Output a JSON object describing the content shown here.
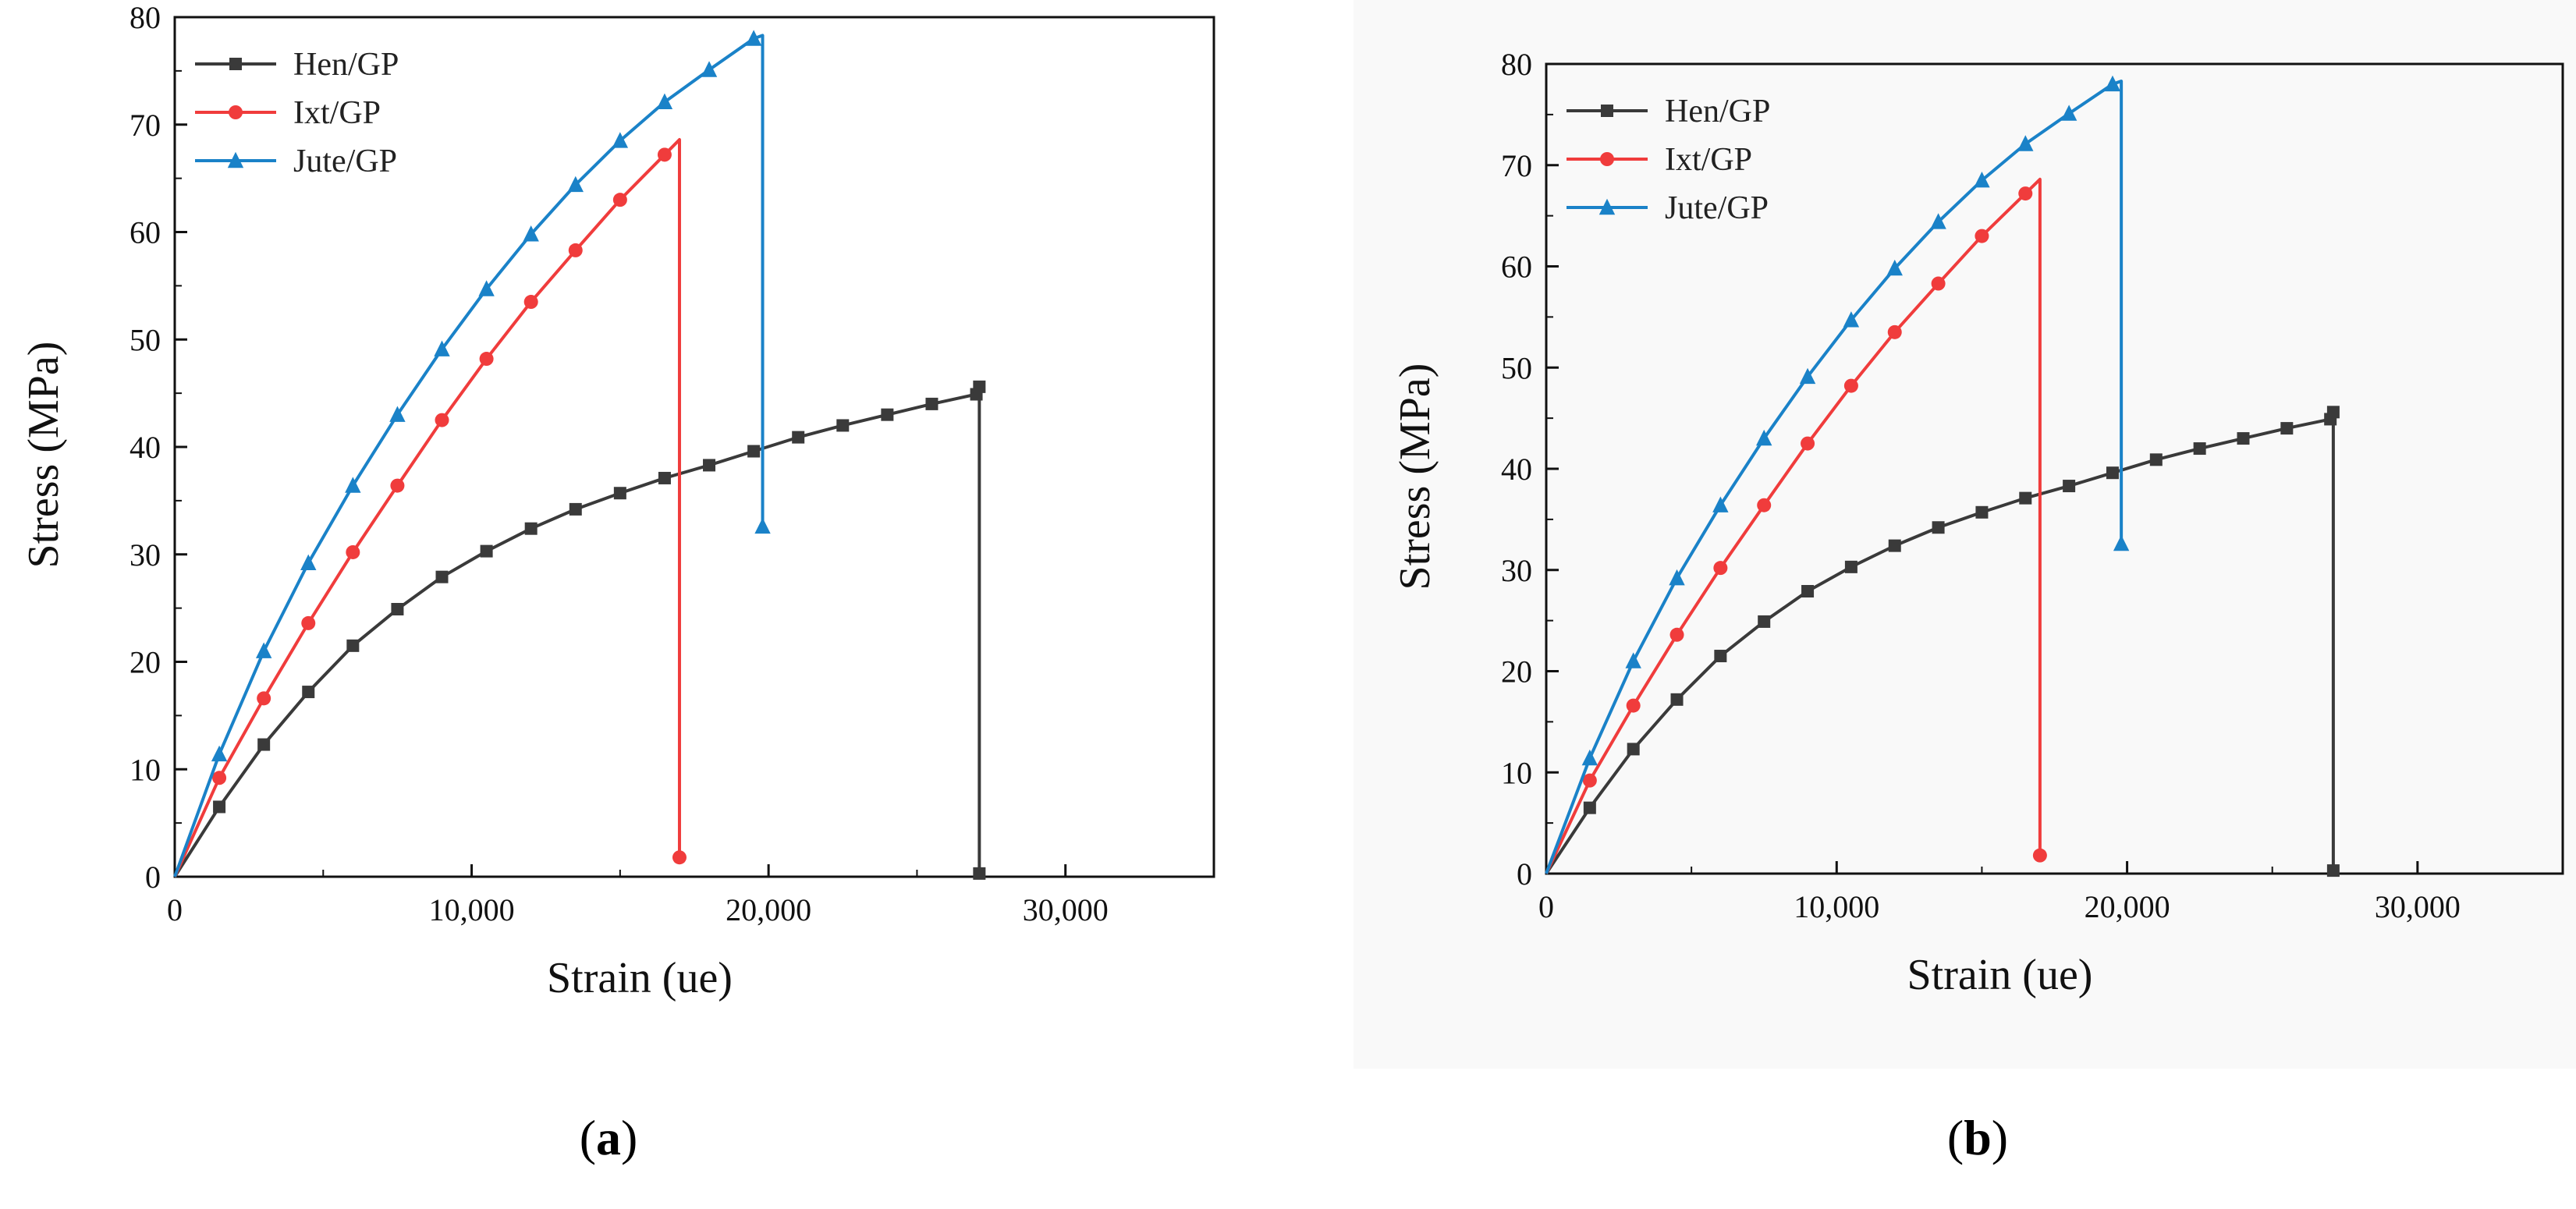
{
  "figure": {
    "panel_labels": [
      {
        "open": "(",
        "letter": "a",
        "close": ")"
      },
      {
        "open": "(",
        "letter": "b",
        "close": ")"
      }
    ]
  },
  "chart_data": [
    {
      "type": "line",
      "panel": "a",
      "xlabel": "Strain (ue)",
      "ylabel": "Stress (MPa)",
      "xlim": [
        0,
        35000
      ],
      "ylim": [
        0,
        80
      ],
      "xticks": [
        0,
        10000,
        20000,
        30000
      ],
      "xtick_labels": [
        "0",
        "10,000",
        "20,000",
        "30,000"
      ],
      "yticks": [
        0,
        10,
        20,
        30,
        40,
        50,
        60,
        70,
        80
      ],
      "ytick_labels": [
        "0",
        "10",
        "20",
        "30",
        "40",
        "50",
        "60",
        "70",
        "80"
      ],
      "legend_position": "top-left",
      "series": [
        {
          "name": "Hen/GP",
          "color": "#3a3a3a",
          "marker": "square",
          "x": [
            0,
            1500,
            3000,
            4500,
            6000,
            7500,
            9000,
            10500,
            12000,
            13500,
            15000,
            16500,
            18000,
            19500,
            21000,
            22500,
            24000,
            25500,
            27000,
            27100,
            27100
          ],
          "y": [
            0,
            6.5,
            12.3,
            17.2,
            21.5,
            24.9,
            27.9,
            30.3,
            32.4,
            34.2,
            35.7,
            37.1,
            38.3,
            39.6,
            40.9,
            42.0,
            43.0,
            44.0,
            44.9,
            45.6,
            0.3
          ]
        },
        {
          "name": "Ixt/GP",
          "color": "#f03c3c",
          "marker": "circle",
          "x": [
            0,
            1500,
            3000,
            4500,
            6000,
            7500,
            9000,
            10500,
            12000,
            13500,
            15000,
            16500,
            17000,
            17000
          ],
          "y": [
            0,
            9.2,
            16.6,
            23.6,
            30.2,
            36.4,
            42.5,
            48.2,
            53.5,
            58.3,
            63.0,
            67.2,
            68.6,
            1.8
          ]
        },
        {
          "name": "Jute/GP",
          "color": "#1a82c8",
          "marker": "triangle",
          "x": [
            0,
            1500,
            3000,
            4500,
            6000,
            7500,
            9000,
            10500,
            12000,
            13500,
            15000,
            16500,
            18000,
            19500,
            19800,
            19800
          ],
          "y": [
            0,
            11.4,
            21.0,
            29.2,
            36.4,
            43.0,
            49.1,
            54.7,
            59.8,
            64.4,
            68.5,
            72.1,
            75.1,
            78.0,
            78.3,
            32.6
          ]
        }
      ]
    },
    {
      "type": "line",
      "panel": "b",
      "xlabel": "Strain (ue)",
      "ylabel": "Stress (MPa)",
      "xlim": [
        0,
        35000
      ],
      "ylim": [
        0,
        80
      ],
      "xticks": [
        0,
        10000,
        20000,
        30000
      ],
      "xtick_labels": [
        "0",
        "10,000",
        "20,000",
        "30,000"
      ],
      "yticks": [
        0,
        10,
        20,
        30,
        40,
        50,
        60,
        70,
        80
      ],
      "ytick_labels": [
        "0",
        "10",
        "20",
        "30",
        "40",
        "50",
        "60",
        "70",
        "80"
      ],
      "legend_position": "top-left",
      "series": [
        {
          "name": "Hen/GP",
          "color": "#3a3a3a",
          "marker": "square",
          "x": [
            0,
            1500,
            3000,
            4500,
            6000,
            7500,
            9000,
            10500,
            12000,
            13500,
            15000,
            16500,
            18000,
            19500,
            21000,
            22500,
            24000,
            25500,
            27000,
            27100,
            27100
          ],
          "y": [
            0,
            6.5,
            12.3,
            17.2,
            21.5,
            24.9,
            27.9,
            30.3,
            32.4,
            34.2,
            35.7,
            37.1,
            38.3,
            39.6,
            40.9,
            42.0,
            43.0,
            44.0,
            44.9,
            45.6,
            0.3
          ]
        },
        {
          "name": "Ixt/GP",
          "color": "#f03c3c",
          "marker": "circle",
          "x": [
            0,
            1500,
            3000,
            4500,
            6000,
            7500,
            9000,
            10500,
            12000,
            13500,
            15000,
            16500,
            17000,
            17000
          ],
          "y": [
            0,
            9.2,
            16.6,
            23.6,
            30.2,
            36.4,
            42.5,
            48.2,
            53.5,
            58.3,
            63.0,
            67.2,
            68.6,
            1.8
          ]
        },
        {
          "name": "Jute/GP",
          "color": "#1a82c8",
          "marker": "triangle",
          "x": [
            0,
            1500,
            3000,
            4500,
            6000,
            7500,
            9000,
            10500,
            12000,
            13500,
            15000,
            16500,
            18000,
            19500,
            19800,
            19800
          ],
          "y": [
            0,
            11.4,
            21.0,
            29.2,
            36.4,
            43.0,
            49.1,
            54.7,
            59.8,
            64.4,
            68.5,
            72.1,
            75.1,
            78.0,
            78.3,
            32.6
          ]
        }
      ]
    }
  ]
}
